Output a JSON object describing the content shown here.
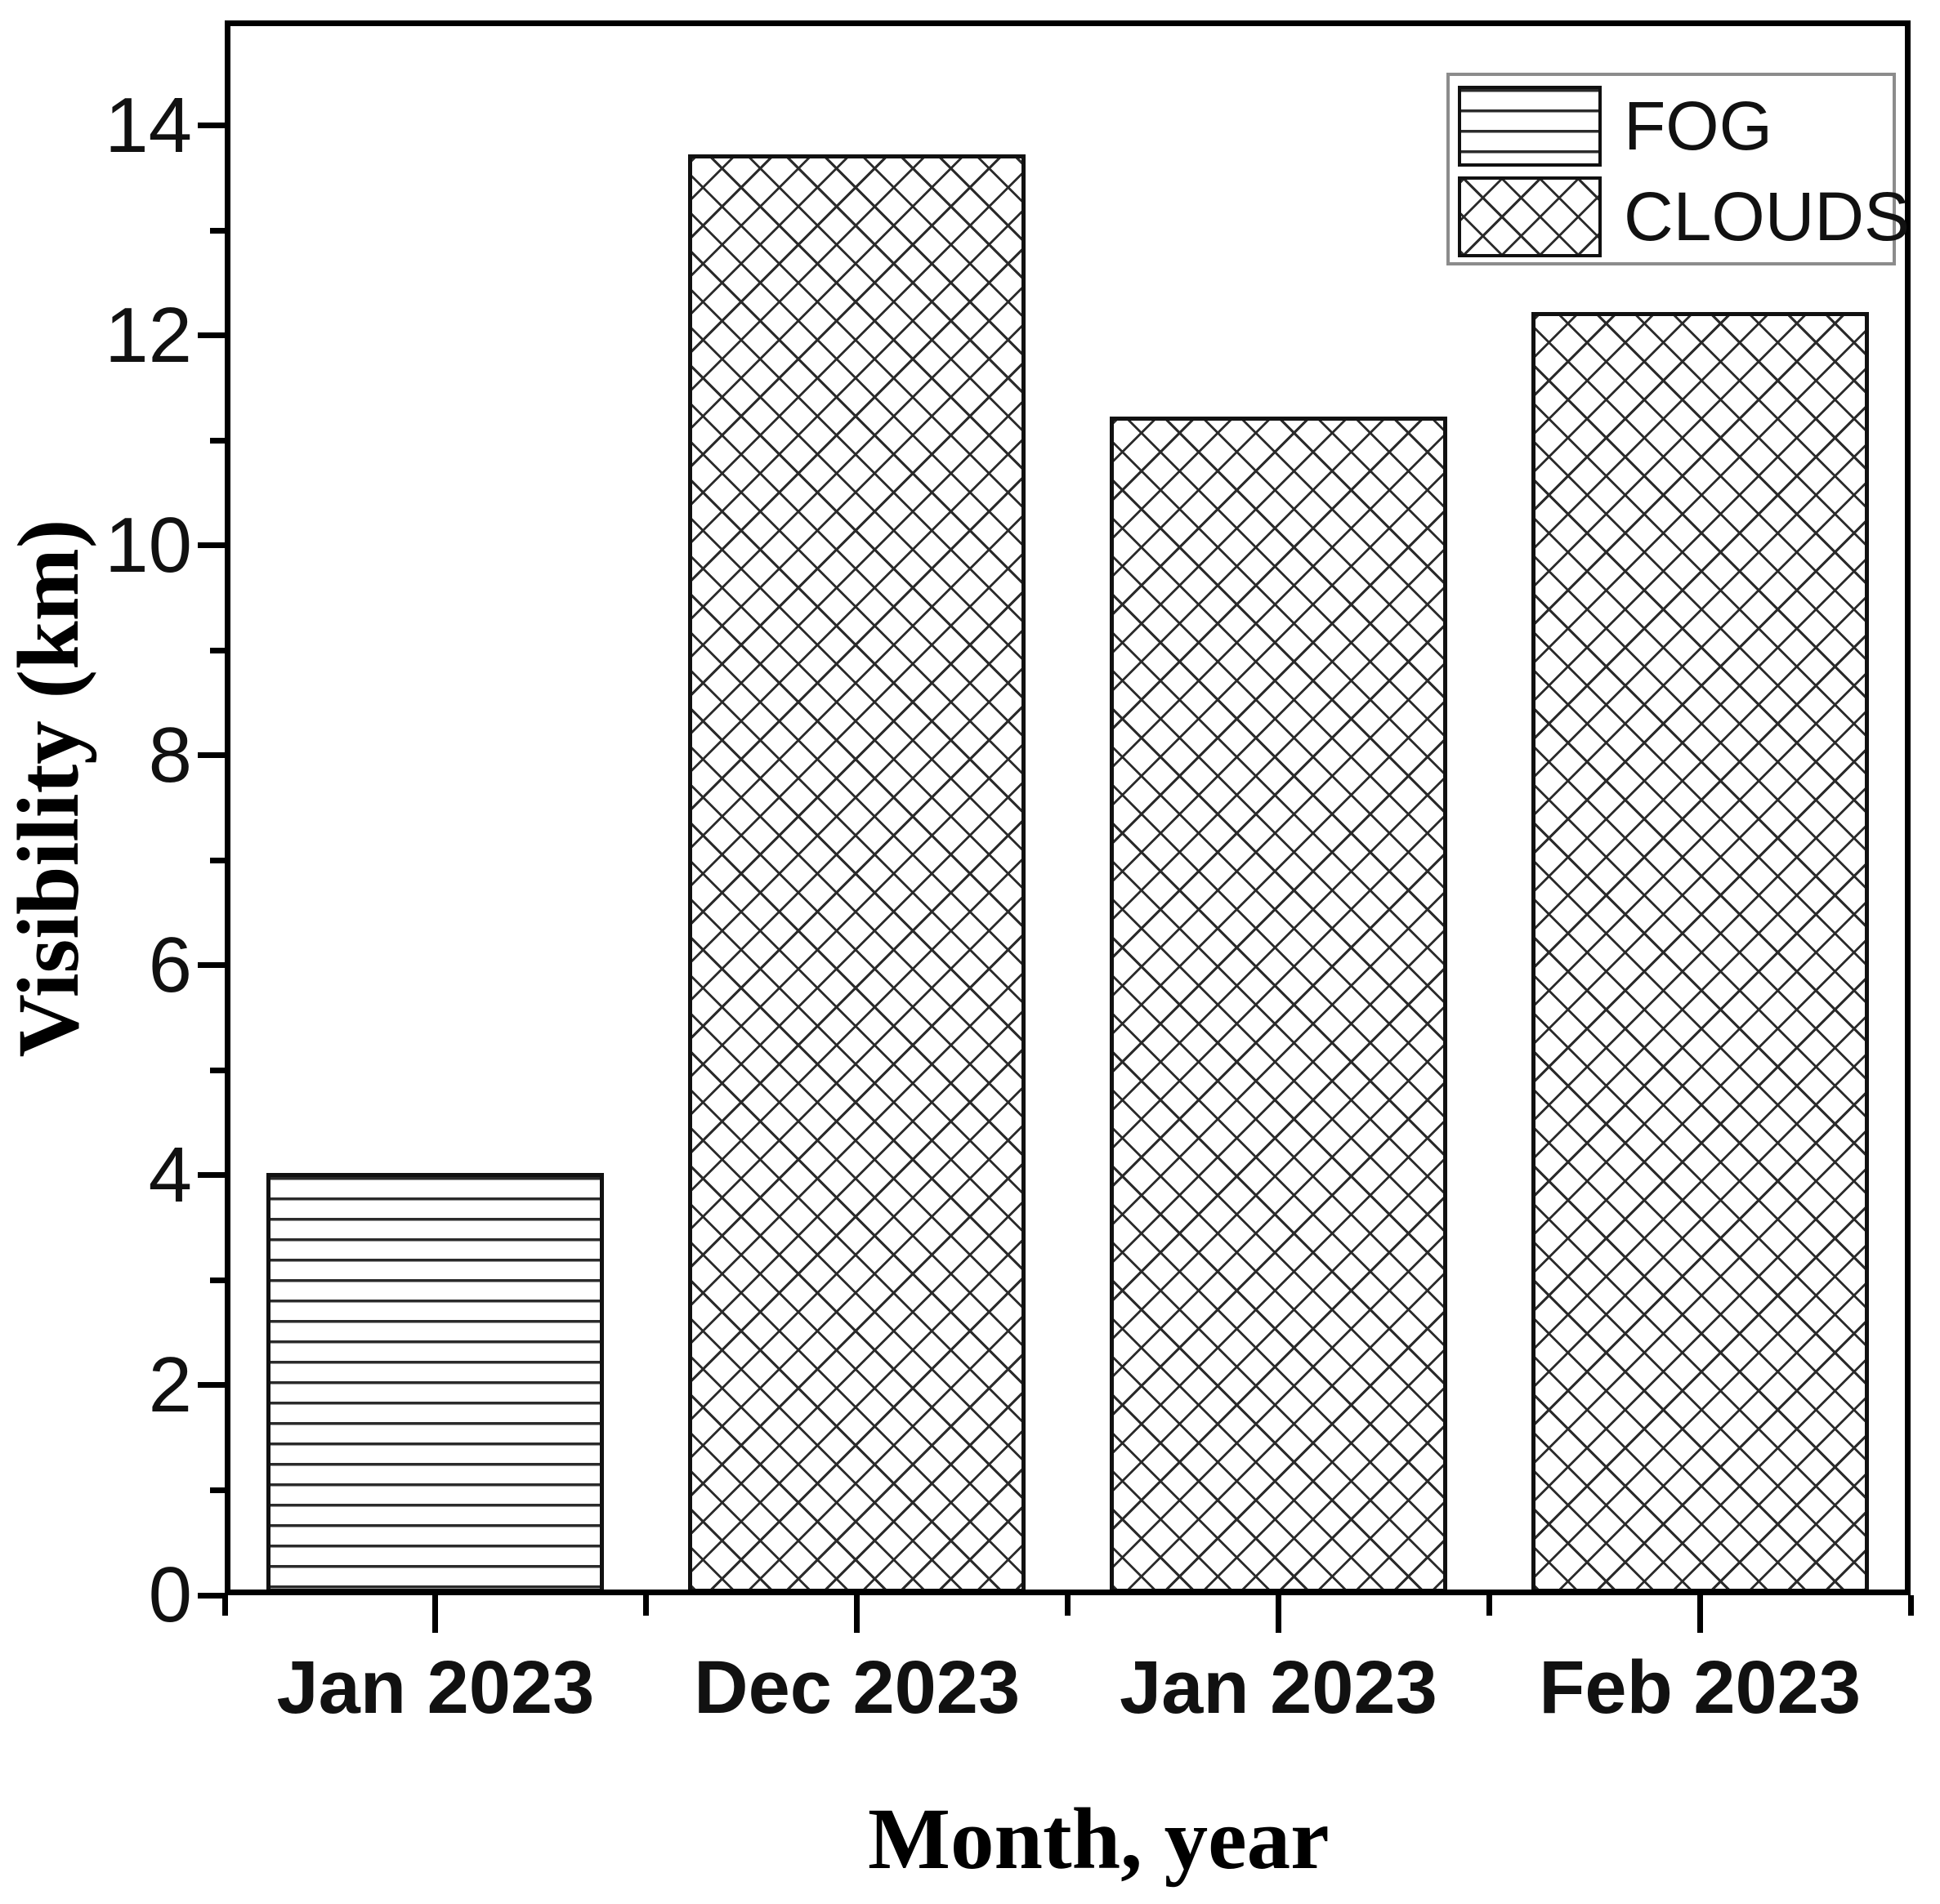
{
  "chart_data": {
    "type": "bar",
    "title": "",
    "categories": [
      "Jan 2023",
      "Dec 2023",
      "Jan 2023",
      "Feb 2023"
    ],
    "values": [
      4.0,
      13.7,
      11.2,
      12.2
    ],
    "bar_patterns": [
      "horizontal-lines",
      "diagonal-crosshatch",
      "diagonal-crosshatch",
      "diagonal-crosshatch"
    ],
    "series": [
      {
        "name": "FOG",
        "pattern": "horizontal-lines",
        "category": "Jan 2023",
        "value": 4.0
      },
      {
        "name": "CLOUDS",
        "pattern": "diagonal-crosshatch",
        "category": "Dec 2023",
        "value": 13.7
      },
      {
        "name": "CLOUDS",
        "pattern": "diagonal-crosshatch",
        "category": "Jan 2023",
        "value": 11.2
      },
      {
        "name": "CLOUDS",
        "pattern": "diagonal-crosshatch",
        "category": "Feb 2023",
        "value": 12.2
      }
    ],
    "xlabel": "Month, year",
    "ylabel": "Visibility (km)",
    "ylim": [
      0,
      15
    ],
    "y_major_ticks": [
      0,
      2,
      4,
      6,
      8,
      10,
      12,
      14
    ],
    "y_minor_ticks": [
      1,
      3,
      5,
      7,
      9,
      11,
      13
    ],
    "grid": false,
    "legend": {
      "position": "top-right",
      "entries": [
        {
          "label": "FOG",
          "pattern": "horizontal-lines"
        },
        {
          "label": "CLOUDS",
          "pattern": "diagonal-crosshatch"
        }
      ]
    },
    "colors": {
      "axis": "#000000",
      "bar_border": "#111111",
      "pattern_lines": "#2b2b2b",
      "legend_border": "#8c8c8c",
      "background": "#ffffff"
    }
  }
}
